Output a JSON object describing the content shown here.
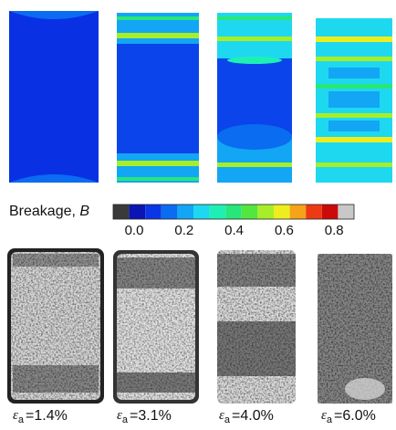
{
  "colorbar": {
    "label": "Breakage, ",
    "symbol": "B",
    "colors": [
      "#3a3a3a",
      "#0b14b4",
      "#0a36e6",
      "#0a6cf0",
      "#12a6f4",
      "#1ed8f0",
      "#1ef0b4",
      "#28e67a",
      "#54e640",
      "#a6ee2a",
      "#eeee1e",
      "#f6a21a",
      "#ee3a14",
      "#cc0a0a",
      "#c8c8c8"
    ],
    "ticks": [
      {
        "value": 0,
        "label": "0.0"
      },
      {
        "value": 0.2,
        "label": "0.2"
      },
      {
        "value": 0.4,
        "label": "0.4"
      },
      {
        "value": 0.6,
        "label": "0.6"
      },
      {
        "value": 0.8,
        "label": "0.8"
      }
    ]
  },
  "panels": [
    {
      "symbol": "ε",
      "subscript": "a",
      "strain": "=1.4%"
    },
    {
      "symbol": "ε",
      "subscript": "a",
      "strain": "=3.1%"
    },
    {
      "symbol": "ε",
      "subscript": "a",
      "strain": "=4.0%"
    },
    {
      "symbol": "ε",
      "subscript": "a",
      "strain": "=6.0%"
    }
  ]
}
